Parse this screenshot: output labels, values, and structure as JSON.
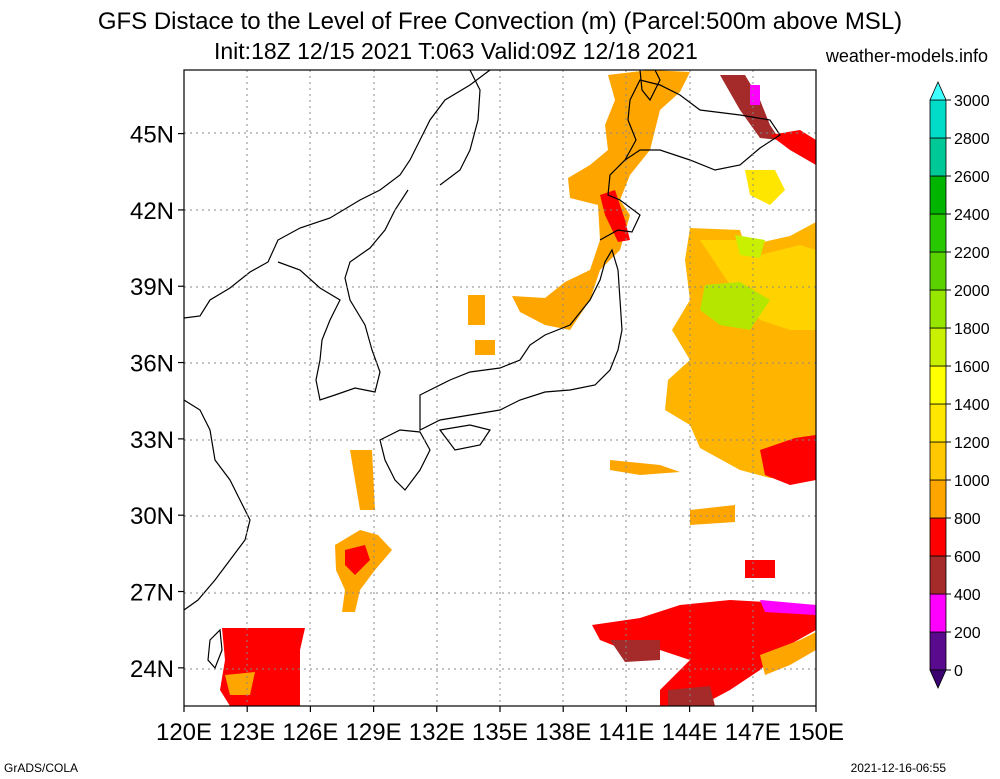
{
  "title": "GFS Distace to the Level of Free Convection (m) (Parcel:500m above MSL)",
  "subtitle": "Init:18Z 12/15 2021 T:063 Valid:09Z 12/18 2021",
  "site": "weather-models.info",
  "footer_left": "GrADS/COLA",
  "footer_right": "2021-12-16-06:55",
  "map": {
    "lon_range": [
      120,
      150
    ],
    "lat_range": [
      22.5,
      47.5
    ],
    "x_ticks": [
      "120E",
      "123E",
      "126E",
      "129E",
      "132E",
      "135E",
      "138E",
      "141E",
      "144E",
      "147E",
      "150E"
    ],
    "y_ticks": [
      "24N",
      "27N",
      "30N",
      "33N",
      "36N",
      "39N",
      "42N",
      "45N"
    ],
    "gridlines": true
  },
  "colorbar": {
    "labels": [
      "0",
      "200",
      "400",
      "600",
      "800",
      "1000",
      "1200",
      "1400",
      "1600",
      "1800",
      "2000",
      "2200",
      "2400",
      "2600",
      "2800",
      "3000"
    ],
    "colors": [
      "#5a0a8c",
      "#ff00ff",
      "#a52a2a",
      "#ff0000",
      "#ffa500",
      "#ffc800",
      "#ffe600",
      "#ffff00",
      "#c8f000",
      "#96e600",
      "#5ad200",
      "#28c800",
      "#00b400",
      "#00c896",
      "#00dcc8",
      "#00ffff"
    ],
    "min_color": "#3a0070",
    "max_color": "#40ffff"
  }
}
